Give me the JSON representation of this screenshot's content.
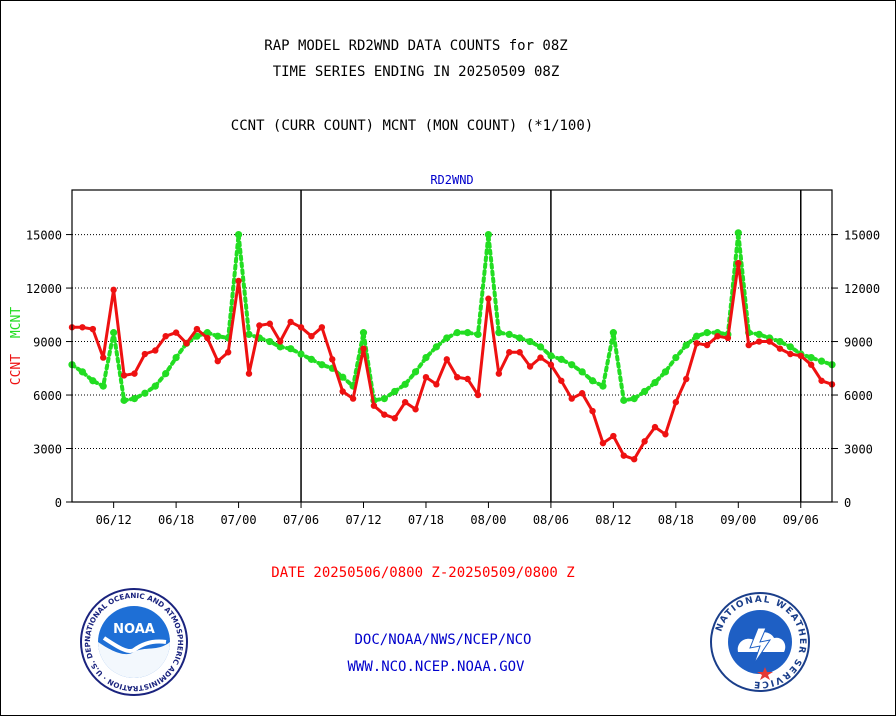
{
  "titles": {
    "line1": "RAP MODEL RD2WND DATA COUNTS for 08Z",
    "line2": "TIME SERIES ENDING IN 20250509 08Z",
    "line3": "CCNT (CURR COUNT) MCNT (MON COUNT) (*1/100)"
  },
  "footer": {
    "date_range": "DATE 20250506/0800 Z-20250509/0800 Z",
    "directory": "DOC/NOAA/NWS/NCEP/NCO",
    "url": "WWW.NCO.NCEP.NOAA.GOV"
  },
  "logos": {
    "noaa_text": "NOAA",
    "noaa_ring": "NATIONAL OCEANIC AND ATMOSPHERIC ADMINISTRATION · U.S. DEPARTMENT OF COMMERCE ·",
    "nws_ring": "NATIONAL WEATHER SERVICE"
  },
  "colors": {
    "curr": "#ee1111",
    "mon": "#22dd22",
    "panel_title": "#0000cc",
    "axis": "#000000"
  },
  "chart_data": {
    "type": "line",
    "title": "RD2WND",
    "ylabel_left": [
      "CCNT",
      "MCNT"
    ],
    "ylim": [
      0,
      17500
    ],
    "yticks": [
      0,
      3000,
      6000,
      9000,
      12000,
      15000
    ],
    "xlim": [
      -4,
      69
    ],
    "x_tick_labels": [
      {
        "x": 0,
        "label": "06/12"
      },
      {
        "x": 6,
        "label": "06/18"
      },
      {
        "x": 12,
        "label": "07/00"
      },
      {
        "x": 18,
        "label": "07/06"
      },
      {
        "x": 24,
        "label": "07/12"
      },
      {
        "x": 30,
        "label": "07/18"
      },
      {
        "x": 36,
        "label": "08/00"
      },
      {
        "x": 42,
        "label": "08/06"
      },
      {
        "x": 48,
        "label": "08/12"
      },
      {
        "x": 54,
        "label": "08/18"
      },
      {
        "x": 60,
        "label": "09/00"
      },
      {
        "x": 66,
        "label": "09/06"
      }
    ],
    "day_dividers": [
      18,
      42,
      66
    ],
    "grid": "horizontal dotted",
    "x": [
      -4,
      -3,
      -2,
      -1,
      0,
      1,
      2,
      3,
      4,
      5,
      6,
      7,
      8,
      9,
      10,
      11,
      12,
      13,
      14,
      15,
      16,
      17,
      18,
      19,
      20,
      21,
      22,
      23,
      24,
      25,
      26,
      27,
      28,
      29,
      30,
      31,
      32,
      33,
      34,
      35,
      36,
      37,
      38,
      39,
      40,
      41,
      42,
      43,
      44,
      45,
      46,
      47,
      48,
      49,
      50,
      51,
      52,
      53,
      54,
      55,
      56,
      57,
      58,
      59,
      60,
      61,
      62,
      63,
      64,
      65,
      66,
      67,
      68,
      69
    ],
    "series": [
      {
        "name": "CCNT",
        "values": [
          9800,
          9800,
          9700,
          8100,
          11900,
          7100,
          7200,
          8300,
          8500,
          9300,
          9500,
          8900,
          9700,
          9200,
          7900,
          8400,
          12400,
          7200,
          9900,
          10000,
          9000,
          10100,
          9800,
          9300,
          9800,
          8000,
          6200,
          5800,
          8600,
          5400,
          4900,
          4700,
          5600,
          5200,
          7000,
          6600,
          8000,
          7000,
          6900,
          6000,
          11400,
          7200,
          8400,
          8400,
          7600,
          8100,
          7700,
          6800,
          5800,
          6100,
          5100,
          3300,
          3700,
          2600,
          2400,
          3400,
          4200,
          3800,
          5600,
          6900,
          8900,
          8800,
          9300,
          9200,
          13400,
          8800,
          9000,
          9000,
          8600,
          8300,
          8200,
          7700,
          6800,
          6600
        ]
      },
      {
        "name": "MCNT",
        "values": [
          7700,
          7300,
          6800,
          6500,
          9500,
          5700,
          5800,
          6100,
          6500,
          7200,
          8100,
          8900,
          9300,
          9500,
          9300,
          9200,
          15000,
          9400,
          9200,
          9000,
          8700,
          8600,
          8300,
          8000,
          7700,
          7500,
          7000,
          6500,
          9500,
          5700,
          5800,
          6200,
          6600,
          7300,
          8100,
          8700,
          9200,
          9500,
          9500,
          9400,
          15000,
          9500,
          9400,
          9200,
          9000,
          8700,
          8200,
          8000,
          7700,
          7300,
          6800,
          6500,
          9500,
          5700,
          5800,
          6200,
          6700,
          7300,
          8100,
          8800,
          9300,
          9500,
          9500,
          9400,
          15100,
          9500,
          9400,
          9200,
          9000,
          8700,
          8300,
          8100,
          7900,
          7700
        ]
      }
    ]
  }
}
